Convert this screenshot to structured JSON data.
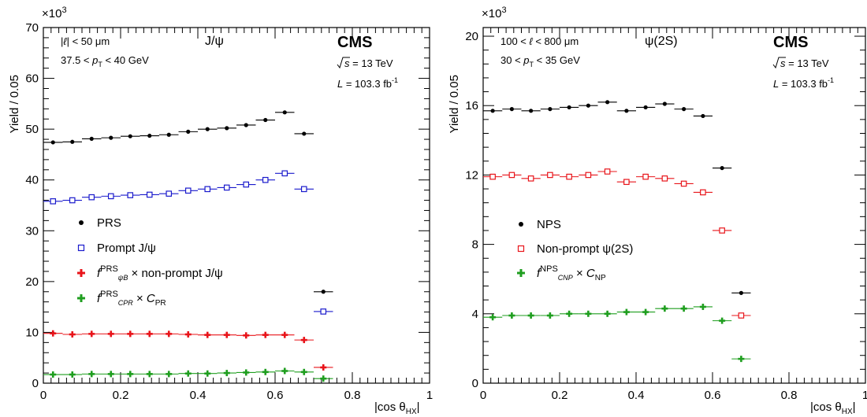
{
  "chart_data": [
    {
      "type": "scatter",
      "xlabel": "|cos θHX|",
      "ylabel": "Yield / 0.05",
      "y_multiplier": "×10³",
      "xlim": [
        0,
        1
      ],
      "ylim": [
        0,
        70
      ],
      "x_ticks": [
        "0",
        "0.2",
        "0.4",
        "0.6",
        "0.8",
        "1"
      ],
      "y_ticks": [
        "0",
        "10",
        "20",
        "30",
        "40",
        "50",
        "60",
        "70"
      ],
      "y_tick_values": [
        0,
        10,
        20,
        30,
        40,
        50,
        60,
        70
      ],
      "annotations": {
        "cut_lifetime": "|ℓ| < 50 μm",
        "cut_pt_pre": "37.5 < p",
        "cut_pt_sub": "T",
        "cut_pt_post": " < 40 GeV",
        "state": "J/ψ",
        "experiment": "CMS",
        "energy_rest": "s = 13 TeV",
        "lumi_pre": "L = 103.3 fb",
        "lumi_sup": "-1"
      },
      "x_centers": [
        0.025,
        0.075,
        0.125,
        0.175,
        0.225,
        0.275,
        0.325,
        0.375,
        0.425,
        0.475,
        0.525,
        0.575,
        0.625,
        0.675,
        0.725
      ],
      "bin_halfwidth": 0.025,
      "series": [
        {
          "name": "PRS",
          "marker": "filled-circle",
          "color": "#000000",
          "values": [
            47.4,
            47.5,
            48.1,
            48.3,
            48.6,
            48.7,
            48.9,
            49.5,
            50.0,
            50.2,
            50.8,
            51.8,
            53.3,
            49.1,
            18.0
          ]
        },
        {
          "name": "Prompt J/ψ",
          "marker": "open-square",
          "color": "#1a1acc",
          "values": [
            35.8,
            36.0,
            36.6,
            36.8,
            37.0,
            37.1,
            37.3,
            37.9,
            38.2,
            38.5,
            39.1,
            40.0,
            41.3,
            38.2,
            14.1
          ]
        },
        {
          "name": "non-prompt J/ψ",
          "name_prefix": "f",
          "name_sup": "PRS",
          "name_sub": "ψB",
          "marker": "filled-cross",
          "color": "#e8141a",
          "values": [
            9.8,
            9.6,
            9.7,
            9.7,
            9.7,
            9.7,
            9.7,
            9.6,
            9.5,
            9.5,
            9.4,
            9.5,
            9.5,
            8.5,
            3.1
          ]
        },
        {
          "name": "C",
          "name_prefix": "f",
          "name_sup": "PRS",
          "name_sub": "CPR",
          "name_after_sub": "PR",
          "marker": "filled-cross",
          "color": "#1f9e1f",
          "values": [
            1.7,
            1.7,
            1.8,
            1.8,
            1.8,
            1.8,
            1.8,
            1.9,
            1.9,
            2.0,
            2.1,
            2.2,
            2.4,
            2.2,
            0.9
          ]
        }
      ]
    },
    {
      "type": "scatter",
      "xlabel": "|cos θHX|",
      "ylabel": "Yield / 0.05",
      "y_multiplier": "×10³",
      "xlim": [
        0,
        1
      ],
      "ylim": [
        0,
        20.5
      ],
      "x_ticks": [
        "0",
        "0.2",
        "0.4",
        "0.6",
        "0.8",
        "1"
      ],
      "y_ticks": [
        "0",
        "4",
        "8",
        "12",
        "16",
        "20"
      ],
      "y_tick_values": [
        0,
        4,
        8,
        12,
        16,
        20
      ],
      "annotations": {
        "cut_lifetime": "100 < ℓ < 800 μm",
        "cut_pt_pre": "30 < p",
        "cut_pt_sub": "T",
        "cut_pt_post": " < 35 GeV",
        "state": "ψ(2S)",
        "experiment": "CMS",
        "energy_rest": "s = 13 TeV",
        "lumi_pre": "L = 103.3 fb",
        "lumi_sup": "-1"
      },
      "x_centers": [
        0.025,
        0.075,
        0.125,
        0.175,
        0.225,
        0.275,
        0.325,
        0.375,
        0.425,
        0.475,
        0.525,
        0.575,
        0.625,
        0.675
      ],
      "bin_halfwidth": 0.025,
      "series": [
        {
          "name": "NPS",
          "marker": "filled-circle",
          "color": "#000000",
          "values": [
            15.7,
            15.8,
            15.7,
            15.8,
            15.9,
            16.0,
            16.2,
            15.7,
            15.9,
            16.1,
            15.8,
            15.4,
            12.4,
            5.2
          ]
        },
        {
          "name": "Non-prompt ψ(2S)",
          "marker": "open-square",
          "color": "#e8141a",
          "values": [
            11.9,
            12.0,
            11.8,
            12.0,
            11.9,
            12.0,
            12.2,
            11.6,
            11.9,
            11.8,
            11.5,
            11.0,
            8.8,
            3.9
          ]
        },
        {
          "name": "C",
          "name_prefix": "f",
          "name_sup": "NPS",
          "name_sub": "CNP",
          "name_after_sub": "NP",
          "marker": "filled-cross",
          "color": "#1f9e1f",
          "values": [
            3.8,
            3.9,
            3.9,
            3.9,
            4.0,
            4.0,
            4.0,
            4.1,
            4.1,
            4.3,
            4.3,
            4.4,
            3.6,
            1.4
          ]
        }
      ]
    }
  ]
}
